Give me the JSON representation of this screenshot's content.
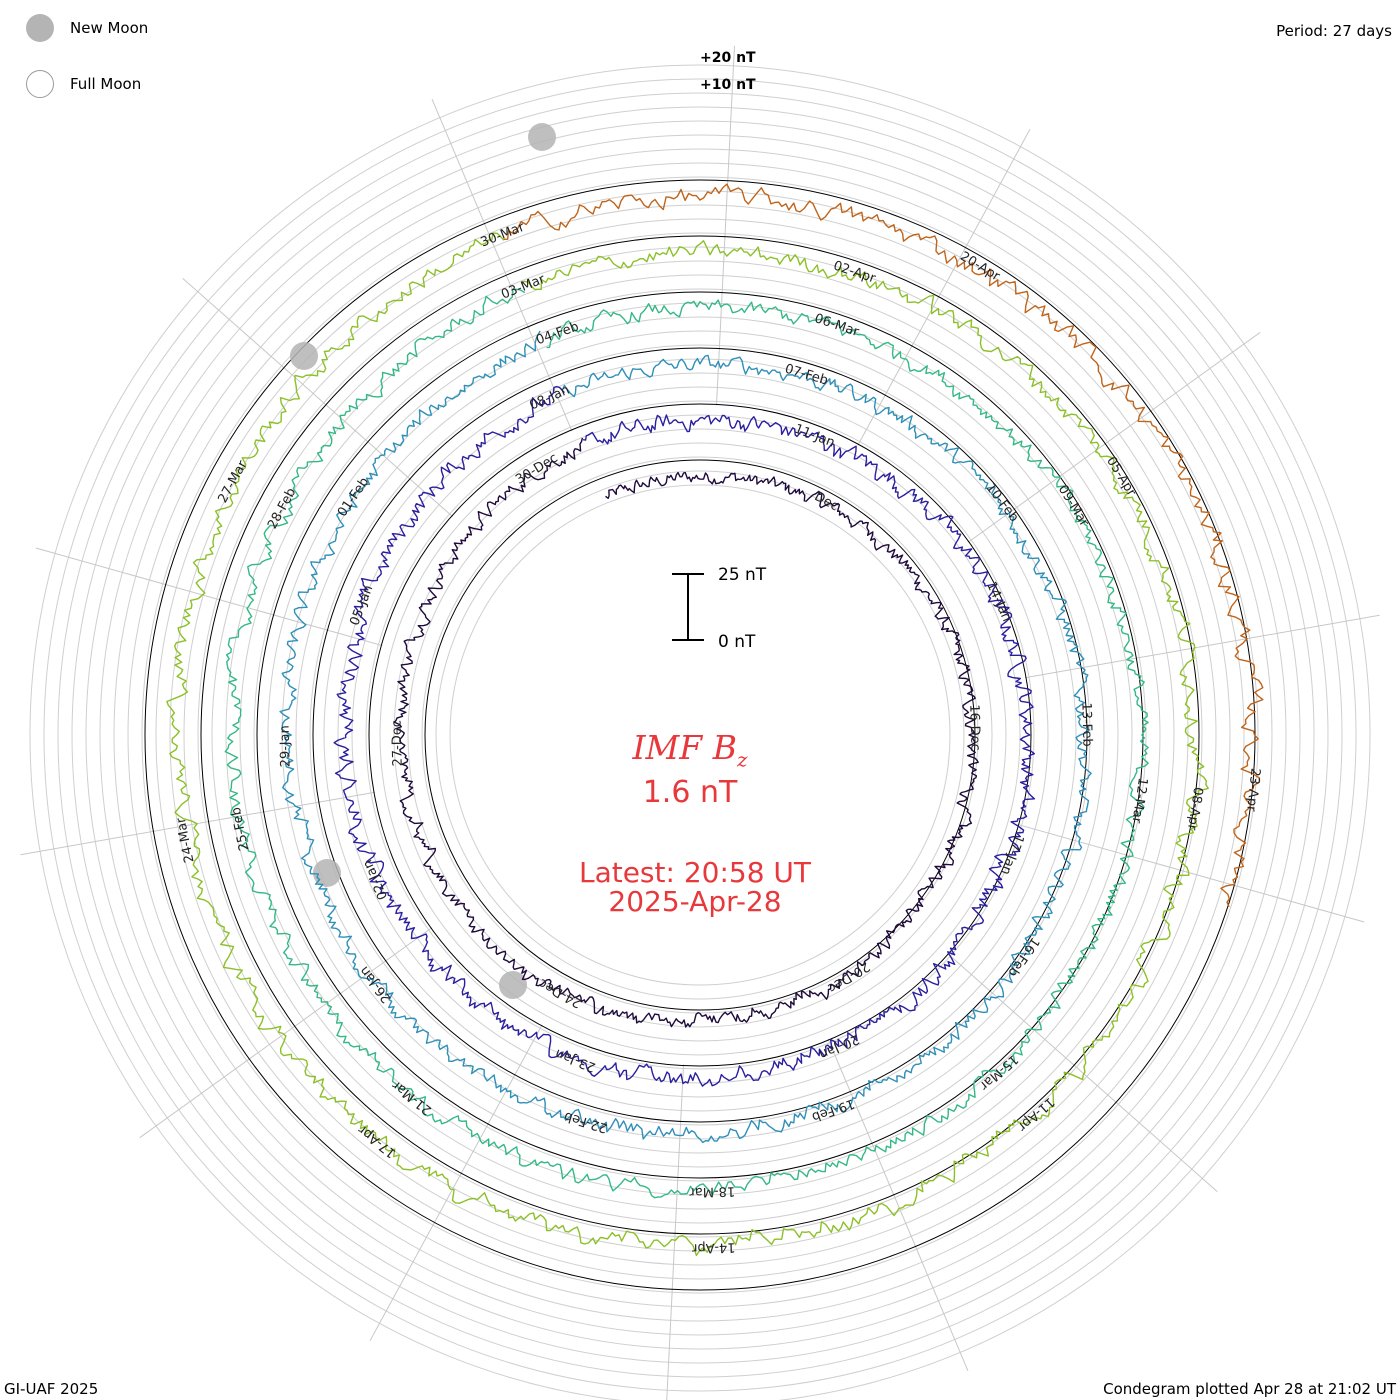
{
  "header": {
    "legend": [
      {
        "label": "New Moon",
        "icon": "new-moon-icon",
        "color": "#b4b4b4"
      },
      {
        "label": "Full Moon",
        "icon": "full-moon-icon",
        "color": "#ffffff"
      }
    ],
    "period": "Period: 27 days"
  },
  "footer": {
    "credit": "GI-UAF 2025",
    "plotted": "Condegram plotted Apr 28 at 21:02 UT"
  },
  "center": {
    "title_main": "IMF B",
    "title_sub": "z",
    "value": "1.6 nT",
    "latest_line1": "Latest: 20:58 UT",
    "latest_line2": "2025-Apr-28"
  },
  "chart_data": {
    "type": "line",
    "period_days": 27,
    "scale_bar": {
      "labels": [
        "25 nT",
        "0 nT"
      ],
      "values_nT": [
        25,
        0
      ]
    },
    "ring_labels": [
      "+20 nT",
      "+10 nT"
    ],
    "rotations": [
      {
        "color": "#1e0a3c",
        "amplitude": 7,
        "labels": [
          "Dec",
          "16-Dec",
          "20-Dec",
          "24-Dec",
          "27-Dec",
          "30-Dec"
        ]
      },
      {
        "color": "#2a1f9e",
        "amplitude": 9,
        "labels": [
          "11-Jan",
          "14-Jan",
          "17-Jan",
          "20-Jan",
          "23-Jan",
          "02-Jan",
          "05-Jan",
          "08-Jan"
        ]
      },
      {
        "color": "#2e8fb8",
        "amplitude": 8,
        "labels": [
          "07-Feb",
          "10-Feb",
          "13-Feb",
          "16-Feb",
          "19-Feb",
          "22-Feb",
          "26-Jan",
          "29-Jan",
          "01-Feb",
          "04-Feb"
        ]
      },
      {
        "color": "#34b886",
        "amplitude": 8,
        "labels": [
          "06-Mar",
          "09-Mar",
          "12-Mar",
          "15-Mar",
          "18-Mar",
          "21-Mar",
          "25-Feb",
          "28-Feb",
          "03-Mar"
        ]
      },
      {
        "color": "#8cc028",
        "amplitude": 9,
        "labels": [
          "02-Apr",
          "05-Apr",
          "08-Apr",
          "11-Apr",
          "14-Apr",
          "17-Apr",
          "24-Mar",
          "27-Mar",
          "30-Mar"
        ]
      },
      {
        "color": "#c0641a",
        "amplitude": 10,
        "labels": [
          "20-Apr",
          "23-Apr"
        ]
      }
    ],
    "latest_time": "20:58 UT",
    "latest_value_nT": 1.6
  }
}
